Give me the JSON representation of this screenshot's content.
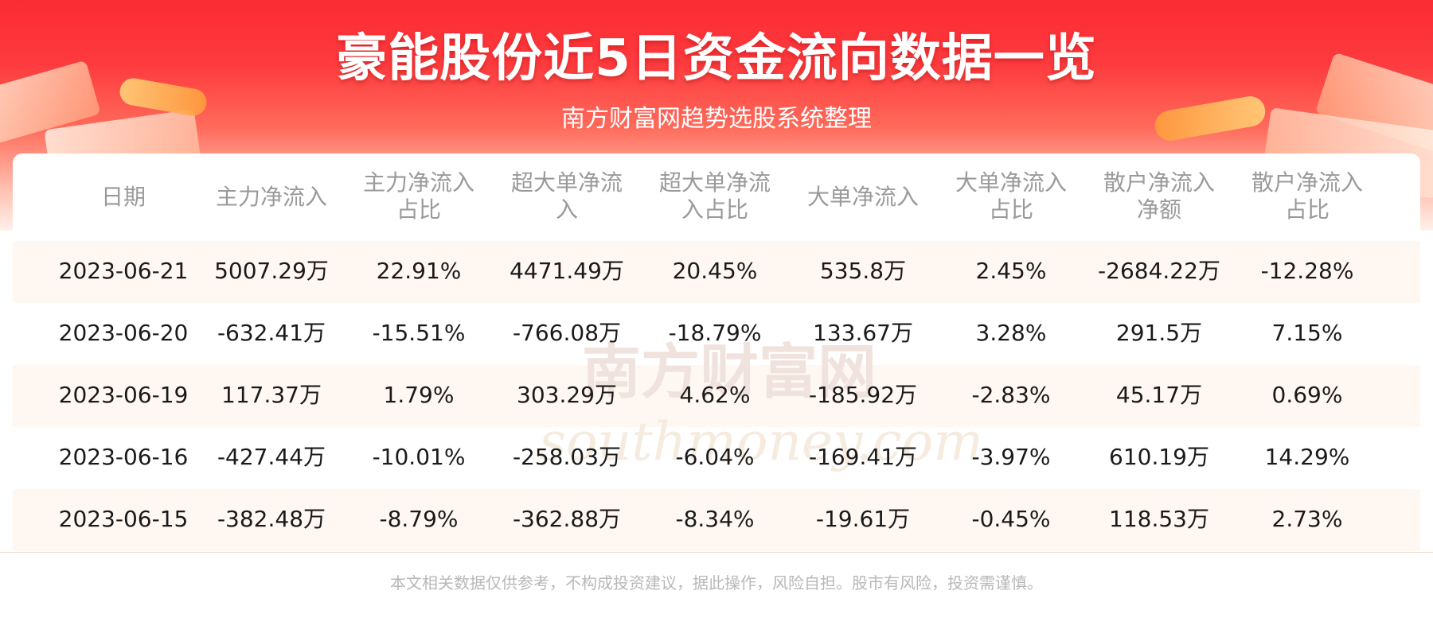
{
  "title": "豪能股份近5日资金流向数据一览",
  "subtitle": "南方财富网趋势选股系统整理",
  "watermark": {
    "cn": "南方财富网",
    "en": "southmoney.com"
  },
  "disclaimer": "本文相关数据仅供参考，不构成投资建议，据此操作，风险自担。股市有风险，投资需谨慎。",
  "colors": {
    "banner": "#fb2b32",
    "stripe": "#fff8f2",
    "header_text": "#9a9a9a",
    "cell_text": "#1a1a1a"
  },
  "chart_data": {
    "type": "table",
    "columns": [
      [
        "日期"
      ],
      [
        "主力净流入"
      ],
      [
        "主力净流入",
        "占比"
      ],
      [
        "超大单净流",
        "入"
      ],
      [
        "超大单净流",
        "入占比"
      ],
      [
        "大单净流入"
      ],
      [
        "大单净流入",
        "占比"
      ],
      [
        "散户净流入",
        "净额"
      ],
      [
        "散户净流入",
        "占比"
      ]
    ],
    "rows": [
      [
        "2023-06-21",
        "5007.29万",
        "22.91%",
        "4471.49万",
        "20.45%",
        "535.8万",
        "2.45%",
        "-2684.22万",
        "-12.28%"
      ],
      [
        "2023-06-20",
        "-632.41万",
        "-15.51%",
        "-766.08万",
        "-18.79%",
        "133.67万",
        "3.28%",
        "291.5万",
        "7.15%"
      ],
      [
        "2023-06-19",
        "117.37万",
        "1.79%",
        "303.29万",
        "4.62%",
        "-185.92万",
        "-2.83%",
        "45.17万",
        "0.69%"
      ],
      [
        "2023-06-16",
        "-427.44万",
        "-10.01%",
        "-258.03万",
        "-6.04%",
        "-169.41万",
        "-3.97%",
        "610.19万",
        "14.29%"
      ],
      [
        "2023-06-15",
        "-382.48万",
        "-8.79%",
        "-362.88万",
        "-8.34%",
        "-19.61万",
        "-0.45%",
        "118.53万",
        "2.73%"
      ]
    ]
  }
}
